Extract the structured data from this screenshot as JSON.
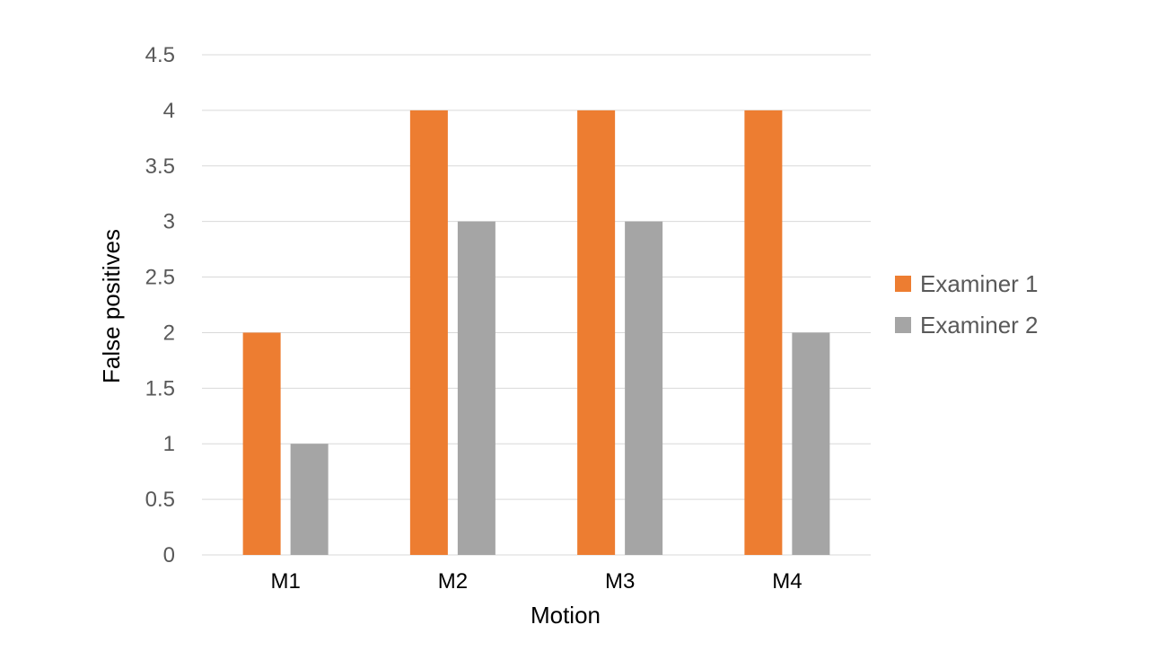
{
  "chart_data": {
    "type": "bar",
    "categories": [
      "M1",
      "M2",
      "M3",
      "M4"
    ],
    "series": [
      {
        "name": "Examiner 1",
        "values": [
          2,
          4,
          4,
          4
        ],
        "color": "#ED7D31"
      },
      {
        "name": "Examiner 2",
        "values": [
          1,
          3,
          3,
          2
        ],
        "color": "#A5A5A5"
      }
    ],
    "title": "",
    "xlabel": "Motion",
    "ylabel": "False positives",
    "ylim": [
      0,
      4.5
    ],
    "yticks": [
      "0",
      "0.5",
      "1",
      "1.5",
      "2",
      "2.5",
      "3",
      "3.5",
      "4",
      "4.5"
    ],
    "grid": true,
    "legend_position": "right"
  }
}
